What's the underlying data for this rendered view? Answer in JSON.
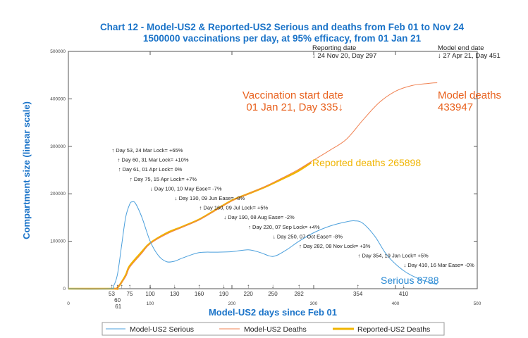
{
  "chart_data": {
    "type": "line",
    "title": "Chart 12 - Model-US2 & Reported-US2 Serious and deaths from Feb 01 to Nov 24",
    "subtitle": "1500000 vaccinations per day, at 95% efficacy, from 01 Jan 21",
    "xlabel": "Model-US2 days since Feb 01",
    "ylabel": "Compartment size (linear scale)",
    "xlim": [
      0,
      500
    ],
    "ylim": [
      0,
      500000
    ],
    "x_ticks": [
      "0",
      "100",
      "200",
      "300",
      "400",
      "500"
    ],
    "y_ticks": [
      "0",
      "100000",
      "200000",
      "300000",
      "400000",
      "500000"
    ],
    "grid": false,
    "legend_position": "bottom",
    "colors": {
      "title": "#1a73c8",
      "serious": "#4a9fdc",
      "model_deaths": "#f08050",
      "reported_deaths": "#f0b400",
      "annotation_orange": "#e8601c",
      "reported_label": "#f0b400",
      "serious_label": "#2a8ad4"
    },
    "series": [
      {
        "name": "Model-US2 Serious",
        "color": "#4a9fdc",
        "points": [
          [
            0,
            0
          ],
          [
            50,
            0
          ],
          [
            55,
            5000
          ],
          [
            60,
            30000
          ],
          [
            65,
            90000
          ],
          [
            70,
            150000
          ],
          [
            75,
            178000
          ],
          [
            78,
            183000
          ],
          [
            82,
            180000
          ],
          [
            90,
            150000
          ],
          [
            100,
            100000
          ],
          [
            110,
            70000
          ],
          [
            120,
            57000
          ],
          [
            130,
            58000
          ],
          [
            140,
            65000
          ],
          [
            160,
            76000
          ],
          [
            180,
            77000
          ],
          [
            200,
            78000
          ],
          [
            220,
            82000
          ],
          [
            235,
            76000
          ],
          [
            250,
            68000
          ],
          [
            265,
            80000
          ],
          [
            282,
            100000
          ],
          [
            300,
            118000
          ],
          [
            320,
            132000
          ],
          [
            340,
            141000
          ],
          [
            350,
            143000
          ],
          [
            360,
            138000
          ],
          [
            375,
            110000
          ],
          [
            390,
            70000
          ],
          [
            410,
            38000
          ],
          [
            430,
            20000
          ],
          [
            451,
            8788
          ]
        ]
      },
      {
        "name": "Model-US2 Deaths",
        "color": "#f08050",
        "points": [
          [
            0,
            0
          ],
          [
            55,
            0
          ],
          [
            60,
            3000
          ],
          [
            70,
            25000
          ],
          [
            75,
            45000
          ],
          [
            90,
            75000
          ],
          [
            100,
            95000
          ],
          [
            120,
            115000
          ],
          [
            140,
            130000
          ],
          [
            160,
            145000
          ],
          [
            180,
            165000
          ],
          [
            200,
            185000
          ],
          [
            220,
            200000
          ],
          [
            240,
            215000
          ],
          [
            260,
            232000
          ],
          [
            280,
            250000
          ],
          [
            297,
            268000
          ],
          [
            320,
            292000
          ],
          [
            340,
            315000
          ],
          [
            360,
            355000
          ],
          [
            380,
            392000
          ],
          [
            400,
            416000
          ],
          [
            420,
            428000
          ],
          [
            440,
            432500
          ],
          [
            451,
            433947
          ]
        ]
      },
      {
        "name": "Reported-US2 Deaths",
        "color": "#f0b400",
        "points": [
          [
            0,
            0
          ],
          [
            55,
            0
          ],
          [
            60,
            2000
          ],
          [
            70,
            28000
          ],
          [
            75,
            48000
          ],
          [
            90,
            78000
          ],
          [
            100,
            96000
          ],
          [
            120,
            117000
          ],
          [
            140,
            131000
          ],
          [
            160,
            146000
          ],
          [
            180,
            166000
          ],
          [
            200,
            186000
          ],
          [
            220,
            200000
          ],
          [
            240,
            214000
          ],
          [
            260,
            230000
          ],
          [
            280,
            247000
          ],
          [
            297,
            265898
          ]
        ]
      }
    ],
    "interventions": [
      {
        "day": 53,
        "dir": "up",
        "label": "Day 53, 24 Mar Lock= +65%"
      },
      {
        "day": 60,
        "dir": "up",
        "label": "Day 60, 31 Mar Lock= +10%"
      },
      {
        "day": 61,
        "dir": "up",
        "label": "Day 61, 01 Apr Lock= 0%"
      },
      {
        "day": 75,
        "dir": "up",
        "label": "Day 75, 15 Apr Lock= +7%"
      },
      {
        "day": 100,
        "dir": "down",
        "label": "Day 100, 10 May Ease= -7%"
      },
      {
        "day": 130,
        "dir": "down",
        "label": "Day 130, 09 Jun Ease= -8%"
      },
      {
        "day": 160,
        "dir": "up",
        "label": "Day 160, 09 Jul Lock= +5%"
      },
      {
        "day": 190,
        "dir": "down",
        "label": "Day 190, 08 Aug Ease= -2%"
      },
      {
        "day": 220,
        "dir": "up",
        "label": "Day 220, 07 Sep Lock= +4%"
      },
      {
        "day": 250,
        "dir": "down",
        "label": "Day 250, 07 Oct Ease= -8%"
      },
      {
        "day": 282,
        "dir": "up",
        "label": "Day 282, 08 Nov Lock= +3%"
      },
      {
        "day": 354,
        "dir": "up",
        "label": "Day 354, 19 Jan Lock= +5%"
      },
      {
        "day": 410,
        "dir": "down",
        "label": "Day 410, 16 Mar Ease= -0%"
      }
    ],
    "annotations": {
      "reporting_date_title": "Reporting date",
      "reporting_date": "↓ 24 Nov 20, Day 297",
      "model_end_title": "Model end date",
      "model_end": "↓ 27 Apr 21, Day 451",
      "vacc_line1": "Vaccination start date",
      "vacc_line2": "01 Jan 21, Day 335↓",
      "model_deaths_line1": "Model deaths",
      "model_deaths_line2": "433947",
      "reported_deaths": "Reported deaths 265898",
      "serious": "Serious 8788"
    }
  }
}
